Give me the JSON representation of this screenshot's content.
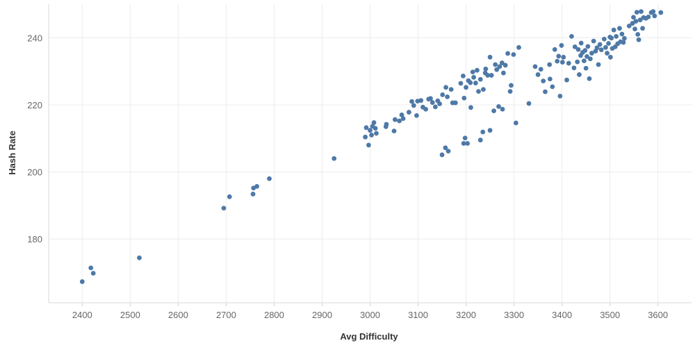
{
  "chart_data": {
    "type": "scatter",
    "title": "",
    "xlabel": "Avg Difficulty",
    "ylabel": "Hash Rate",
    "xlim": [
      2330,
      3670
    ],
    "ylim": [
      161,
      250
    ],
    "xticks": [
      2400,
      2500,
      2600,
      2700,
      2800,
      2900,
      3000,
      3100,
      3200,
      3300,
      3400,
      3500,
      3600
    ],
    "yticks": [
      180,
      200,
      220,
      240
    ],
    "grid": true,
    "color": "#4e79a7",
    "points": [
      [
        2400,
        167.3
      ],
      [
        2418,
        171.4
      ],
      [
        2423,
        169.8
      ],
      [
        2519,
        174.4
      ],
      [
        2695,
        189.2
      ],
      [
        2707,
        192.6
      ],
      [
        2756,
        193.4
      ],
      [
        2757,
        195.2
      ],
      [
        2764,
        195.7
      ],
      [
        2790,
        198.0
      ],
      [
        2925,
        204.0
      ],
      [
        2990,
        210.4
      ],
      [
        2992,
        213.2
      ],
      [
        2997,
        208.0
      ],
      [
        3000,
        212.4
      ],
      [
        3003,
        211.0
      ],
      [
        3005,
        213.6
      ],
      [
        3008,
        214.7
      ],
      [
        3011,
        213.0
      ],
      [
        3013,
        211.5
      ],
      [
        3033,
        213.5
      ],
      [
        3034,
        214.2
      ],
      [
        3050,
        212.2
      ],
      [
        3052,
        215.6
      ],
      [
        3061,
        215.2
      ],
      [
        3066,
        217.0
      ],
      [
        3069,
        215.9
      ],
      [
        3081,
        217.8
      ],
      [
        3087,
        221.0
      ],
      [
        3091,
        219.8
      ],
      [
        3097,
        216.8
      ],
      [
        3099,
        221.1
      ],
      [
        3106,
        221.3
      ],
      [
        3110,
        219.3
      ],
      [
        3116,
        218.7
      ],
      [
        3122,
        221.7
      ],
      [
        3126,
        221.9
      ],
      [
        3130,
        220.7
      ],
      [
        3136,
        219.4
      ],
      [
        3141,
        221.2
      ],
      [
        3145,
        220.3
      ],
      [
        3151,
        223.0
      ],
      [
        3158,
        225.2
      ],
      [
        3161,
        222.4
      ],
      [
        3169,
        224.6
      ],
      [
        3172,
        220.6
      ],
      [
        3178,
        220.6
      ],
      [
        3189,
        226.4
      ],
      [
        3194,
        228.6
      ],
      [
        3196,
        222.0
      ],
      [
        3200,
        225.2
      ],
      [
        3205,
        227.2
      ],
      [
        3209,
        226.6
      ],
      [
        3210,
        219.2
      ],
      [
        3214,
        229.8
      ],
      [
        3216,
        228.2
      ],
      [
        3220,
        226.5
      ],
      [
        3223,
        230.3
      ],
      [
        3226,
        224.0
      ],
      [
        3230,
        227.6
      ],
      [
        3236,
        224.6
      ],
      [
        3240,
        229.5
      ],
      [
        3241,
        230.7
      ],
      [
        3245,
        228.8
      ],
      [
        3250,
        234.2
      ],
      [
        3253,
        228.8
      ],
      [
        3258,
        218.2
      ],
      [
        3261,
        232.0
      ],
      [
        3264,
        230.5
      ],
      [
        3268,
        219.5
      ],
      [
        3270,
        231.4
      ],
      [
        3275,
        232.5
      ],
      [
        3276,
        218.7
      ],
      [
        3278,
        229.5
      ],
      [
        3282,
        231.8
      ],
      [
        3287,
        235.3
      ],
      [
        3292,
        224.0
      ],
      [
        3294,
        225.8
      ],
      [
        3299,
        235.0
      ],
      [
        3310,
        237.1
      ],
      [
        3150,
        205.1
      ],
      [
        3157,
        207.2
      ],
      [
        3163,
        206.2
      ],
      [
        3195,
        208.5
      ],
      [
        3198,
        210.1
      ],
      [
        3203,
        208.5
      ],
      [
        3230,
        209.5
      ],
      [
        3235,
        211.9
      ],
      [
        3250,
        212.4
      ],
      [
        3304,
        214.6
      ],
      [
        3331,
        220.4
      ],
      [
        3344,
        231.4
      ],
      [
        3350,
        229.0
      ],
      [
        3356,
        230.6
      ],
      [
        3361,
        227.1
      ],
      [
        3365,
        223.9
      ],
      [
        3374,
        232.0
      ],
      [
        3375,
        227.7
      ],
      [
        3380,
        225.4
      ],
      [
        3385,
        236.5
      ],
      [
        3390,
        233.0
      ],
      [
        3393,
        234.5
      ],
      [
        3396,
        222.6
      ],
      [
        3399,
        237.7
      ],
      [
        3401,
        232.7
      ],
      [
        3403,
        234.2
      ],
      [
        3410,
        227.4
      ],
      [
        3414,
        232.4
      ],
      [
        3420,
        240.4
      ],
      [
        3425,
        231.0
      ],
      [
        3427,
        237.3
      ],
      [
        3432,
        232.8
      ],
      [
        3434,
        236.5
      ],
      [
        3436,
        229.0
      ],
      [
        3439,
        234.7
      ],
      [
        3440,
        238.4
      ],
      [
        3443,
        235.6
      ],
      [
        3446,
        233.1
      ],
      [
        3448,
        236.2
      ],
      [
        3450,
        230.9
      ],
      [
        3452,
        234.4
      ],
      [
        3454,
        237.4
      ],
      [
        3457,
        227.8
      ],
      [
        3459,
        233.7
      ],
      [
        3462,
        235.4
      ],
      [
        3466,
        239.0
      ],
      [
        3470,
        236.0
      ],
      [
        3473,
        237.0
      ],
      [
        3476,
        232.0
      ],
      [
        3479,
        238.0
      ],
      [
        3482,
        236.4
      ],
      [
        3488,
        239.6
      ],
      [
        3491,
        237.1
      ],
      [
        3494,
        235.4
      ],
      [
        3497,
        238.3
      ],
      [
        3500,
        240.2
      ],
      [
        3501,
        234.2
      ],
      [
        3503,
        239.9
      ],
      [
        3505,
        236.8
      ],
      [
        3508,
        242.3
      ],
      [
        3511,
        237.3
      ],
      [
        3513,
        240.4
      ],
      [
        3516,
        238.2
      ],
      [
        3520,
        242.8
      ],
      [
        3522,
        238.8
      ],
      [
        3525,
        241.1
      ],
      [
        3528,
        238.6
      ],
      [
        3530,
        239.8
      ],
      [
        3540,
        243.5
      ],
      [
        3547,
        244.3
      ],
      [
        3549,
        246.1
      ],
      [
        3552,
        242.6
      ],
      [
        3554,
        244.9
      ],
      [
        3556,
        247.6
      ],
      [
        3558,
        241.0
      ],
      [
        3560,
        239.4
      ],
      [
        3563,
        245.3
      ],
      [
        3565,
        247.8
      ],
      [
        3568,
        242.8
      ],
      [
        3570,
        246.0
      ],
      [
        3575,
        245.8
      ],
      [
        3580,
        246.2
      ],
      [
        3586,
        247.5
      ],
      [
        3590,
        247.8
      ],
      [
        3593,
        246.5
      ],
      [
        3606,
        247.5
      ]
    ]
  }
}
